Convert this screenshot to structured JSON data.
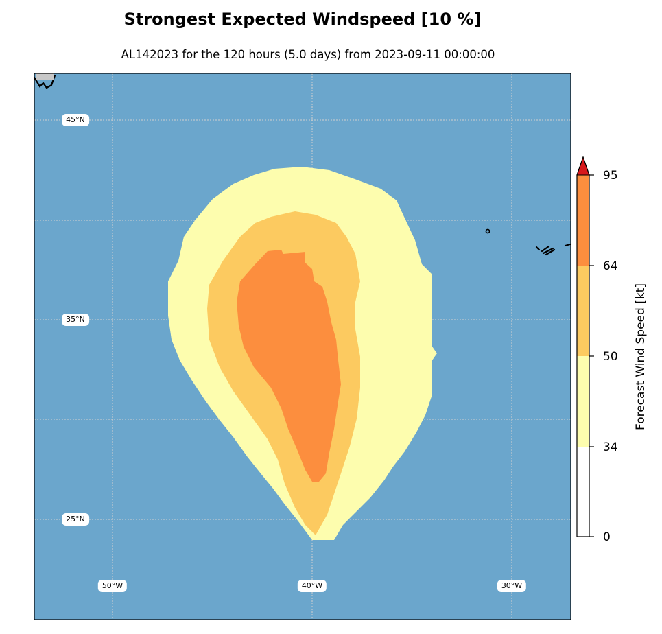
{
  "title": "Strongest Expected Windspeed [10 %]",
  "subtitle": "AL142023 for the 120 hours (5.0 days) from 2023-09-11 00:00:00",
  "colors": {
    "ocean": "#6ba6cc",
    "band_34_50": "#fdfdae",
    "band_50_64": "#fcca60",
    "band_64_95": "#fc8e3e",
    "extend_above_95": "#d7191c"
  },
  "latitude_labels": [
    {
      "text": "45°N",
      "lat": 45
    },
    {
      "text": "35°N",
      "lat": 35
    },
    {
      "text": "25°N",
      "lat": 25
    }
  ],
  "longitude_labels": [
    {
      "text": "50°W",
      "lon": -50
    },
    {
      "text": "40°W",
      "lon": -40
    },
    {
      "text": "30°W",
      "lon": -30
    }
  ],
  "colorbar": {
    "label": "Forecast Wind Speed [kt]",
    "ticks": [
      "0",
      "34",
      "50",
      "64",
      "95"
    ]
  }
}
